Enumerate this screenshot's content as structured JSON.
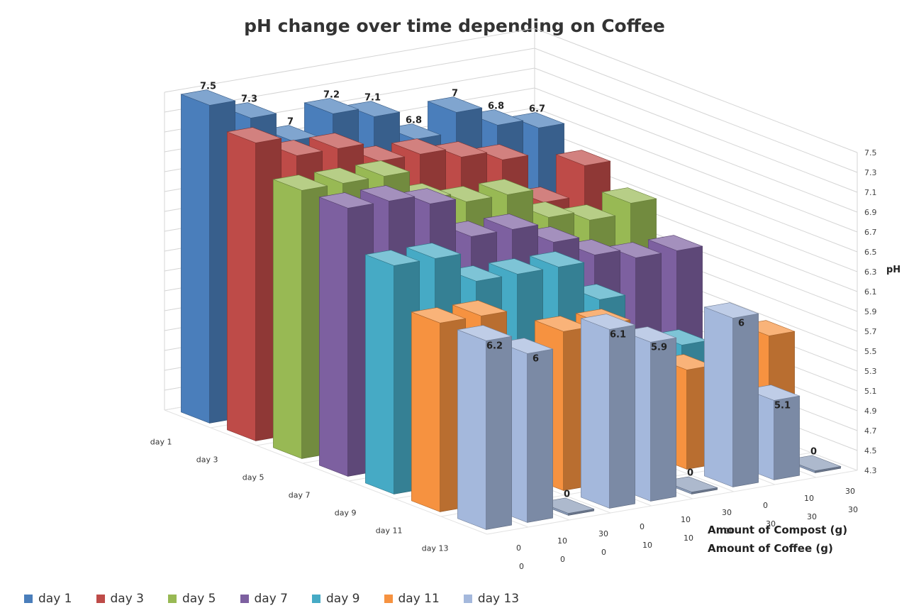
{
  "chart_data": {
    "type": "bar",
    "variant": "3d-column",
    "title": "pH change over time depending on Coffee",
    "zlabel": "pH",
    "xlabel_compost": "Amount of Compost (g)",
    "xlabel_coffee": "Amount of Coffee (g)",
    "z_ticks": [
      "4.3",
      "4.5",
      "4.7",
      "4.9",
      "5.1",
      "5.3",
      "5.5",
      "5.7",
      "5.9",
      "6.1",
      "6.3",
      "6.5",
      "6.7",
      "6.9",
      "7.1",
      "7.3",
      "7.5"
    ],
    "zlim": [
      4.3,
      7.5
    ],
    "grid": true,
    "legend_position": "bottom",
    "categories": [
      {
        "compost": "0",
        "coffee": "0"
      },
      {
        "compost": "10",
        "coffee": "0"
      },
      {
        "compost": "30",
        "coffee": "0"
      },
      {
        "compost": "0",
        "coffee": "10"
      },
      {
        "compost": "10",
        "coffee": "10"
      },
      {
        "compost": "30",
        "coffee": "10"
      },
      {
        "compost": "0",
        "coffee": "30"
      },
      {
        "compost": "10",
        "coffee": "30"
      },
      {
        "compost": "30",
        "coffee": "30"
      }
    ],
    "series": [
      {
        "name": "day 1",
        "color": "#4a7ebb",
        "values": [
          7.5,
          7.3,
          7.0,
          7.2,
          7.1,
          6.8,
          7.0,
          6.8,
          6.7
        ]
      },
      {
        "name": "day 3",
        "color": "#be4b48",
        "values": [
          7.3,
          7.1,
          7.1,
          6.9,
          6.9,
          6.8,
          6.7,
          6.2,
          6.5
        ]
      },
      {
        "name": "day 5",
        "color": "#98b954",
        "values": [
          7.0,
          7.0,
          7.0,
          6.7,
          6.6,
          6.6,
          6.3,
          6.2,
          6.3
        ]
      },
      {
        "name": "day 7",
        "color": "#7d60a0",
        "values": [
          7.0,
          7.0,
          6.9,
          6.5,
          6.5,
          6.3,
          6.1,
          6.0,
          6.0
        ]
      },
      {
        "name": "day 9",
        "color": "#46aac5",
        "values": [
          6.6,
          6.6,
          6.3,
          6.3,
          6.3,
          5.9,
          5.3,
          5.3,
          5.1
        ]
      },
      {
        "name": "day 11",
        "color": "#f69240",
        "values": [
          6.2,
          6.2,
          0,
          5.9,
          5.9,
          0,
          5.3,
          4.9,
          5.5
        ]
      },
      {
        "name": "day 13",
        "color": "#a4b8dc",
        "values": [
          6.2,
          6.0,
          0,
          6.1,
          5.9,
          0,
          6.0,
          5.1,
          0
        ]
      }
    ],
    "data_labels": [
      {
        "series": "day 1",
        "category": 0,
        "text": "7.5"
      },
      {
        "series": "day 1",
        "category": 1,
        "text": "7.3"
      },
      {
        "series": "day 1",
        "category": 2,
        "text": "7"
      },
      {
        "series": "day 1",
        "category": 3,
        "text": "7.2"
      },
      {
        "series": "day 1",
        "category": 4,
        "text": "7.1"
      },
      {
        "series": "day 1",
        "category": 5,
        "text": "6.8"
      },
      {
        "series": "day 1",
        "category": 6,
        "text": "7"
      },
      {
        "series": "day 1",
        "category": 7,
        "text": "6.8"
      },
      {
        "series": "day 1",
        "category": 8,
        "text": "6.7"
      },
      {
        "series": "day 13",
        "category": 0,
        "text": "6.2"
      },
      {
        "series": "day 13",
        "category": 1,
        "text": "6"
      },
      {
        "series": "day 13",
        "category": 2,
        "text": "0"
      },
      {
        "series": "day 13",
        "category": 3,
        "text": "6.1"
      },
      {
        "series": "day 13",
        "category": 4,
        "text": "5.9"
      },
      {
        "series": "day 13",
        "category": 5,
        "text": "0"
      },
      {
        "series": "day 13",
        "category": 6,
        "text": "6"
      },
      {
        "series": "day 13",
        "category": 7,
        "text": "5.1"
      },
      {
        "series": "day 13",
        "category": 8,
        "text": "0"
      }
    ]
  }
}
